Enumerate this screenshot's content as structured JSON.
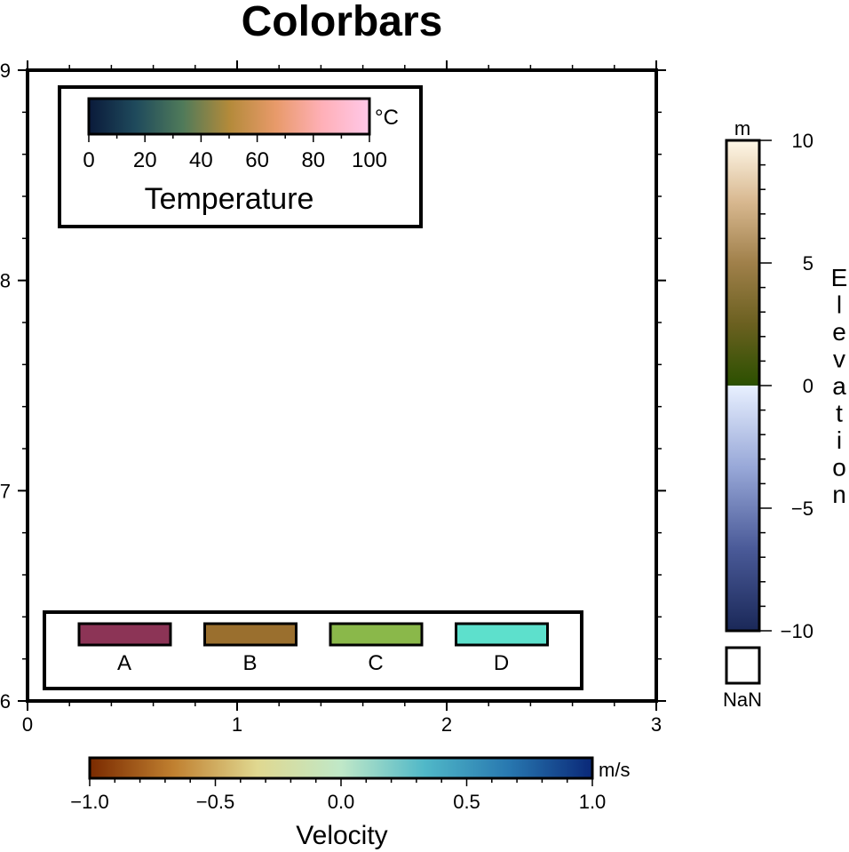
{
  "chart_data": {
    "type": "colorbar-demo",
    "title": "Colorbars",
    "frame": {
      "xlim": [
        0,
        3
      ],
      "ylim": [
        6,
        9
      ],
      "x_ticks": [
        0,
        1,
        2,
        3
      ],
      "y_ticks": [
        6,
        7,
        8,
        9
      ]
    },
    "colorbars": {
      "temperature": {
        "label": "Temperature",
        "unit": "°C",
        "range": [
          0,
          100
        ],
        "ticks": [
          "0",
          "20",
          "40",
          "60",
          "80",
          "100"
        ],
        "colors": [
          "#0a1a3a",
          "#1f4a5c",
          "#4f7a5a",
          "#b38a3a",
          "#e89a6a",
          "#ffb0b8",
          "#ffc8e8"
        ]
      },
      "categorical": {
        "categories": [
          "A",
          "B",
          "C",
          "D"
        ],
        "colors": [
          "#8c3456",
          "#9a6f2e",
          "#8ab84a",
          "#5de0cc"
        ]
      },
      "elevation": {
        "label": "Elevation",
        "unit": "m",
        "range": [
          -10,
          10
        ],
        "ticks": [
          "10",
          "5",
          "0",
          "−5",
          "−10"
        ],
        "nan_label": "NaN",
        "colors_above": [
          "#2b5000",
          "#6b6020",
          "#a0804a",
          "#d8b890",
          "#fff8e8"
        ],
        "colors_below": [
          "#1a2858",
          "#4a5a98",
          "#98a8d8",
          "#e8f0ff"
        ]
      },
      "velocity": {
        "label": "Velocity",
        "unit": "m/s",
        "range": [
          -1.0,
          1.0
        ],
        "ticks": [
          "−1.0",
          "−0.5",
          "0.0",
          "0.5",
          "1.0"
        ],
        "colors": [
          "#7a2a00",
          "#c08030",
          "#e0d890",
          "#c0e8c8",
          "#50b8c8",
          "#2878b0",
          "#0a2878"
        ]
      }
    }
  }
}
